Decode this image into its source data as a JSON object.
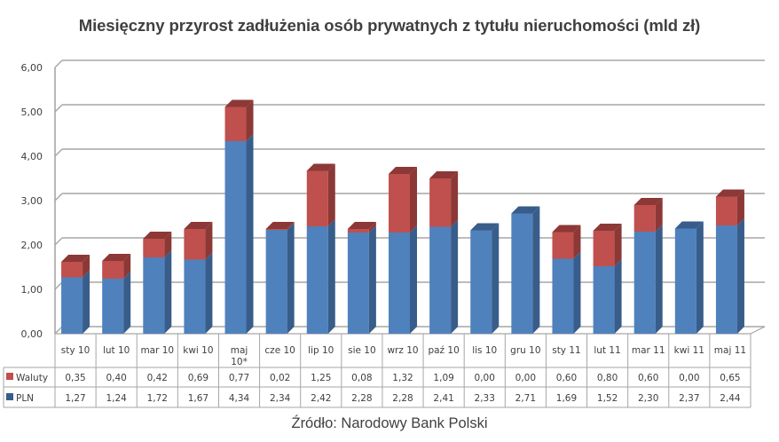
{
  "title": "Miesięczny przyrost zadłużenia osób prywatnych z tytułu nieruchomości (mld zł)",
  "source": "Źródło: Narodowy Bank Polski",
  "colors": {
    "waluty": "#c0504d",
    "waluty_dark": "#8c3836",
    "pln": "#4f81bd",
    "pln_dark": "#385d8a",
    "grid": "#a6a6a6",
    "axis_text": "#404040"
  },
  "chart_data": {
    "type": "bar",
    "stacked": true,
    "three_d": true,
    "title": "Miesięczny przyrost zadłużenia osób prywatnych z tytułu nieruchomości (mld zł)",
    "xlabel": "",
    "ylabel": "",
    "ylim": [
      0,
      6
    ],
    "yticks": [
      "0,00",
      "1,00",
      "2,00",
      "3,00",
      "4,00",
      "5,00",
      "6,00"
    ],
    "grid": true,
    "legend_position": "data-table-left",
    "categories": [
      "sty 10",
      "lut 10",
      "mar 10",
      "kwi 10",
      "maj 10*",
      "cze 10",
      "lip 10",
      "sie 10",
      "wrz 10",
      "paź 10",
      "lis 10",
      "gru 10",
      "sty 11",
      "lut 11",
      "mar 11",
      "kwi 11",
      "maj 11"
    ],
    "series": [
      {
        "name": "PLN",
        "color": "#4f81bd",
        "values": [
          1.27,
          1.24,
          1.72,
          1.67,
          4.34,
          2.34,
          2.42,
          2.28,
          2.28,
          2.41,
          2.33,
          2.71,
          1.69,
          1.52,
          2.3,
          2.37,
          2.44
        ],
        "labels": [
          "1,27",
          "1,24",
          "1,72",
          "1,67",
          "4,34",
          "2,34",
          "2,42",
          "2,28",
          "2,28",
          "2,41",
          "2,33",
          "2,71",
          "1,69",
          "1,52",
          "2,30",
          "2,37",
          "2,44"
        ]
      },
      {
        "name": "Waluty",
        "color": "#c0504d",
        "values": [
          0.35,
          0.4,
          0.42,
          0.69,
          0.77,
          0.02,
          1.25,
          0.08,
          1.32,
          1.09,
          0.0,
          0.0,
          0.6,
          0.8,
          0.6,
          0.0,
          0.65
        ],
        "labels": [
          "0,35",
          "0,40",
          "0,42",
          "0,69",
          "0,77",
          "0,02",
          "1,25",
          "0,08",
          "1,32",
          "1,09",
          "0,00",
          "0,00",
          "0,60",
          "0,80",
          "0,60",
          "0,00",
          "0,65"
        ]
      }
    ],
    "source": "Źródło: Narodowy Bank Polski"
  }
}
